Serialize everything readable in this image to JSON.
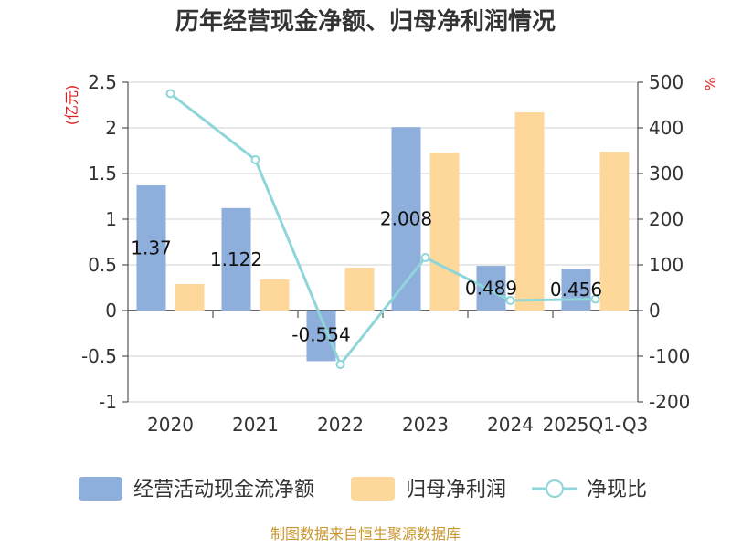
{
  "chart_data": {
    "type": "bar+line",
    "title": "历年经营现金净额、归母净利润情况",
    "categories": [
      "2020",
      "2021",
      "2022",
      "2023",
      "2024",
      "2025Q1-Q3"
    ],
    "left_axis": {
      "unit": "(亿元)",
      "ylim": [
        -1,
        2.5
      ],
      "ticks": [
        "2.5",
        "2",
        "1.5",
        "1",
        "0.5",
        "0",
        "-0.5",
        "-1"
      ]
    },
    "right_axis": {
      "unit": "%",
      "ylim": [
        -200,
        500
      ],
      "ticks": [
        "500",
        "400",
        "300",
        "200",
        "100",
        "0",
        "-100",
        "-200"
      ]
    },
    "series": [
      {
        "name": "经营活动现金流净额",
        "kind": "bar",
        "axis": "left",
        "color": "#8eaedb",
        "values": [
          1.37,
          1.122,
          -0.554,
          2.008,
          0.489,
          0.456
        ],
        "labels": [
          "1.37",
          "1.122",
          "-0.554",
          "2.008",
          "0.489",
          "0.456"
        ]
      },
      {
        "name": "归母净利润",
        "kind": "bar",
        "axis": "left",
        "color": "#fdd89a",
        "values": [
          0.29,
          0.34,
          0.47,
          1.73,
          2.17,
          1.74
        ]
      },
      {
        "name": "净现比",
        "kind": "line",
        "axis": "right",
        "color": "#8ed6da",
        "values": [
          475,
          330,
          -118,
          116,
          22,
          25
        ]
      }
    ],
    "grid": true,
    "legend_position": "bottom"
  },
  "source": "制图数据来自恒生聚源数据库"
}
